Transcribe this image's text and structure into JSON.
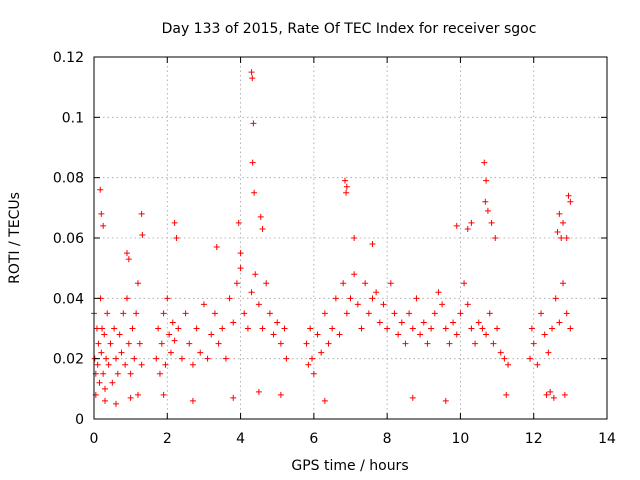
{
  "chart_data": {
    "type": "scatter",
    "title": "Day 133 of 2015, Rate Of TEC Index for receiver sgoc",
    "xlabel": "GPS time / hours",
    "ylabel": "ROTI / TECUs",
    "xlim": [
      0,
      14
    ],
    "ylim": [
      0,
      0.12
    ],
    "xticks": [
      0,
      2,
      4,
      6,
      8,
      10,
      12,
      14
    ],
    "xtick_labels": [
      "0",
      "2",
      "4",
      "6",
      "8",
      "10",
      "12",
      "14"
    ],
    "yticks": [
      0,
      0.02,
      0.04,
      0.06,
      0.08,
      0.1,
      0.12
    ],
    "ytick_labels": [
      "0",
      "0.02",
      "0.04",
      "0.06",
      "0.08",
      "0.1",
      "0.12"
    ],
    "grid": true,
    "marker": "+",
    "color": "#ff0000",
    "series": [
      {
        "name": "ROTI",
        "x": [
          0.0,
          0.02,
          0.05,
          0.08,
          0.1,
          0.12,
          0.15,
          0.18,
          0.2,
          0.22,
          0.25,
          0.28,
          0.3,
          0.33,
          0.36,
          0.4,
          0.45,
          0.5,
          0.55,
          0.6,
          0.65,
          0.7,
          0.75,
          0.8,
          0.85,
          0.9,
          0.95,
          1.0,
          1.05,
          1.1,
          1.15,
          1.2,
          1.25,
          1.3,
          0.17,
          0.2,
          0.25,
          0.9,
          0.95,
          1.3,
          1.32,
          0.05,
          0.3,
          0.6,
          1.0,
          1.2,
          1.7,
          1.75,
          1.8,
          1.85,
          1.9,
          1.95,
          2.0,
          2.05,
          2.1,
          2.15,
          2.2,
          2.3,
          2.4,
          2.5,
          2.6,
          2.7,
          2.8,
          2.9,
          3.0,
          3.1,
          3.2,
          3.3,
          3.4,
          3.5,
          3.6,
          3.7,
          3.8,
          3.9,
          4.0,
          4.1,
          4.2,
          4.3,
          4.4,
          4.5,
          4.6,
          4.7,
          4.8,
          4.9,
          5.0,
          5.1,
          5.2,
          5.25,
          2.2,
          2.25,
          3.35,
          3.95,
          4.0,
          4.3,
          4.32,
          4.35,
          4.37,
          4.33,
          4.55,
          4.6,
          1.9,
          2.7,
          3.8,
          4.5,
          5.1,
          5.8,
          5.85,
          5.9,
          5.95,
          6.0,
          6.1,
          6.2,
          6.3,
          6.4,
          6.5,
          6.6,
          6.7,
          6.8,
          6.9,
          7.0,
          7.1,
          7.2,
          7.3,
          7.4,
          7.5,
          7.6,
          7.7,
          7.8,
          7.9,
          8.0,
          8.1,
          8.2,
          8.3,
          8.4,
          8.5,
          8.6,
          8.7,
          8.8,
          8.9,
          9.0,
          9.1,
          9.2,
          9.3,
          9.4,
          9.5,
          9.6,
          9.7,
          9.8,
          9.9,
          10.0,
          10.1,
          10.2,
          10.3,
          10.4,
          10.5,
          10.6,
          10.7,
          10.8,
          10.9,
          11.0,
          11.1,
          11.2,
          11.3,
          6.85,
          6.9,
          6.88,
          7.1,
          7.6,
          9.9,
          10.2,
          10.3,
          10.65,
          10.7,
          10.68,
          10.75,
          10.85,
          10.95,
          6.3,
          8.7,
          9.6,
          11.25,
          11.9,
          11.95,
          12.0,
          12.1,
          12.2,
          12.3,
          12.4,
          12.5,
          12.6,
          12.7,
          12.8,
          12.9,
          13.0,
          12.65,
          12.7,
          12.75,
          12.8,
          12.9,
          12.95,
          13.0,
          12.35,
          12.45,
          12.55,
          12.85
        ],
        "y": [
          0.035,
          0.02,
          0.015,
          0.03,
          0.018,
          0.025,
          0.012,
          0.04,
          0.022,
          0.03,
          0.015,
          0.028,
          0.01,
          0.02,
          0.035,
          0.018,
          0.025,
          0.012,
          0.03,
          0.02,
          0.015,
          0.028,
          0.022,
          0.035,
          0.018,
          0.04,
          0.025,
          0.015,
          0.03,
          0.02,
          0.035,
          0.045,
          0.025,
          0.018,
          0.076,
          0.068,
          0.064,
          0.055,
          0.053,
          0.068,
          0.061,
          0.008,
          0.006,
          0.005,
          0.007,
          0.008,
          0.02,
          0.03,
          0.015,
          0.025,
          0.035,
          0.018,
          0.04,
          0.028,
          0.022,
          0.032,
          0.026,
          0.03,
          0.02,
          0.035,
          0.025,
          0.018,
          0.03,
          0.022,
          0.038,
          0.02,
          0.028,
          0.035,
          0.025,
          0.03,
          0.02,
          0.04,
          0.032,
          0.045,
          0.05,
          0.035,
          0.03,
          0.042,
          0.048,
          0.038,
          0.03,
          0.045,
          0.035,
          0.028,
          0.032,
          0.025,
          0.03,
          0.02,
          0.065,
          0.06,
          0.057,
          0.065,
          0.055,
          0.115,
          0.113,
          0.098,
          0.075,
          0.085,
          0.067,
          0.063,
          0.008,
          0.006,
          0.007,
          0.009,
          0.008,
          0.025,
          0.018,
          0.03,
          0.02,
          0.015,
          0.028,
          0.022,
          0.035,
          0.025,
          0.03,
          0.04,
          0.028,
          0.045,
          0.035,
          0.04,
          0.048,
          0.038,
          0.03,
          0.045,
          0.035,
          0.04,
          0.042,
          0.032,
          0.038,
          0.03,
          0.045,
          0.035,
          0.028,
          0.032,
          0.025,
          0.035,
          0.03,
          0.04,
          0.028,
          0.032,
          0.025,
          0.03,
          0.035,
          0.042,
          0.038,
          0.03,
          0.025,
          0.032,
          0.028,
          0.035,
          0.045,
          0.038,
          0.03,
          0.025,
          0.032,
          0.03,
          0.028,
          0.035,
          0.025,
          0.03,
          0.022,
          0.02,
          0.018,
          0.079,
          0.077,
          0.075,
          0.06,
          0.058,
          0.064,
          0.063,
          0.065,
          0.085,
          0.079,
          0.072,
          0.069,
          0.065,
          0.06,
          0.006,
          0.007,
          0.006,
          0.008,
          0.02,
          0.03,
          0.025,
          0.018,
          0.035,
          0.028,
          0.022,
          0.03,
          0.04,
          0.032,
          0.045,
          0.035,
          0.03,
          0.062,
          0.068,
          0.06,
          0.065,
          0.06,
          0.074,
          0.072,
          0.008,
          0.009,
          0.007,
          0.008
        ]
      }
    ]
  }
}
